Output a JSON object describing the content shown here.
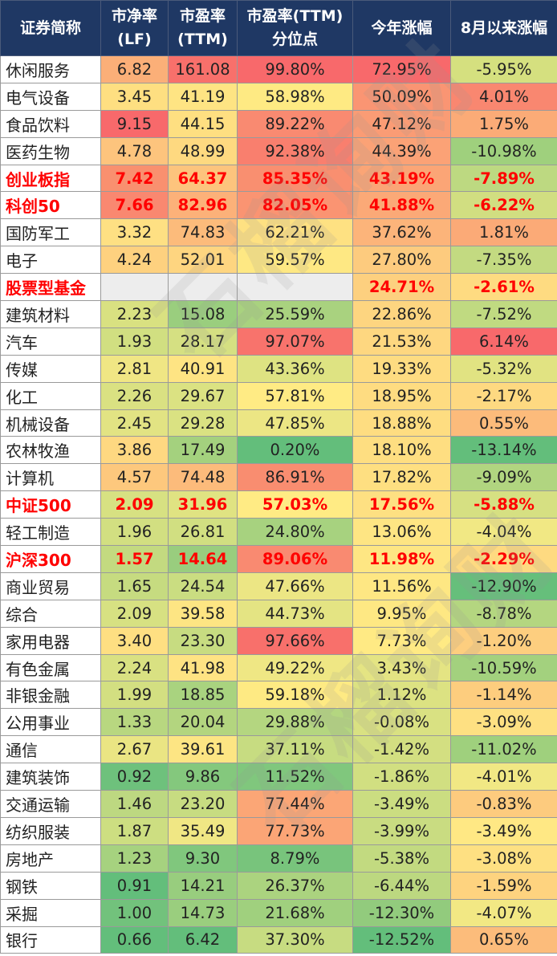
{
  "headers": [
    "证券简称",
    "市净率\n(LF)",
    "市盈率\n(TTM)",
    "市盈率(TTM)\n分位点",
    "今年涨幅",
    "8月以来涨幅"
  ],
  "watermark": "石榴询财",
  "rows": [
    {
      "name": "休闲服务",
      "pb": "6.82",
      "pe": "161.08",
      "pct": "99.80%",
      "ytd": "72.95%",
      "aug": "-5.95%",
      "hl": false,
      "bg": [
        "#FFFFFF",
        "#FBAF78",
        "#F8706B",
        "#F8696B",
        "#F8696B",
        "#D5E07F"
      ]
    },
    {
      "name": "电气设备",
      "pb": "3.45",
      "pe": "41.19",
      "pct": "58.98%",
      "ytd": "50.09%",
      "aug": "4.01%",
      "hl": false,
      "bg": [
        "#FFFFFF",
        "#FEDF81",
        "#FEE483",
        "#FEEA83",
        "#FA9573",
        "#F98770"
      ]
    },
    {
      "name": "食品饮料",
      "pb": "9.15",
      "pe": "44.15",
      "pct": "89.22%",
      "ytd": "47.12%",
      "aug": "1.75%",
      "hl": false,
      "bg": [
        "#FFFFFF",
        "#F8696B",
        "#FEDF81",
        "#F98A71",
        "#FA9C75",
        "#FBAB77"
      ]
    },
    {
      "name": "医药生物",
      "pb": "4.78",
      "pe": "48.99",
      "pct": "92.38%",
      "ytd": "44.39%",
      "aug": "-10.98%",
      "hl": false,
      "bg": [
        "#FFFFFF",
        "#FDC47D",
        "#FED980",
        "#F97F6E",
        "#FBA276",
        "#9FD07D"
      ]
    },
    {
      "name": "创业板指",
      "pb": "7.42",
      "pe": "64.37",
      "pct": "85.35%",
      "ytd": "43.19%",
      "aug": "-7.89%",
      "hl": true,
      "bg": [
        "#FFFFFF",
        "#F9906F",
        "#FDC47D",
        "#F98F70",
        "#FBA576",
        "#BDD981"
      ]
    },
    {
      "name": "科创50",
      "pb": "7.66",
      "pe": "82.96",
      "pct": "82.05%",
      "ytd": "41.88%",
      "aug": "-6.22%",
      "hl": true,
      "bg": [
        "#FFFFFF",
        "#F98870",
        "#FCB179",
        "#FA9472",
        "#FBA977",
        "#D1DE81"
      ]
    },
    {
      "name": "国防军工",
      "pb": "3.32",
      "pe": "74.83",
      "pct": "62.21%",
      "ytd": "37.62%",
      "aug": "1.81%",
      "hl": false,
      "bg": [
        "#FFFFFF",
        "#FEE083",
        "#FCBB7B",
        "#FEE182",
        "#FCB47A",
        "#FBAA77"
      ]
    },
    {
      "name": "电子",
      "pb": "4.24",
      "pe": "52.01",
      "pct": "59.57%",
      "ytd": "27.80%",
      "aug": "-7.35%",
      "hl": false,
      "bg": [
        "#FFFFFF",
        "#FED17F",
        "#FED580",
        "#FEE883",
        "#FDCB7E",
        "#C3DA81"
      ]
    },
    {
      "name": "股票型基金",
      "pb": "",
      "pe": "",
      "pct": "",
      "ytd": "24.71%",
      "aug": "-2.61%",
      "hl": true,
      "bg": [
        "#FFFFFF",
        "#EDEDED",
        "#EDEDED",
        "#EDEDED",
        "#FDD07F",
        "#FEDB81"
      ]
    },
    {
      "name": "建筑材料",
      "pb": "2.23",
      "pe": "15.08",
      "pct": "25.59%",
      "ytd": "22.86%",
      "aug": "-7.52%",
      "hl": false,
      "bg": [
        "#FFFFFF",
        "#D9E181",
        "#9ACE7E",
        "#A9D27F",
        "#FDD580",
        "#C0DA81"
      ]
    },
    {
      "name": "汽车",
      "pb": "1.93",
      "pe": "28.17",
      "pct": "97.07%",
      "ytd": "21.53%",
      "aug": "6.14%",
      "hl": false,
      "bg": [
        "#FFFFFF",
        "#D1DF81",
        "#D5E082",
        "#F8736C",
        "#FED780",
        "#F8696B"
      ]
    },
    {
      "name": "传媒",
      "pb": "2.81",
      "pe": "40.91",
      "pct": "43.36%",
      "ytd": "19.33%",
      "aug": "-5.32%",
      "hl": false,
      "bg": [
        "#FFFFFF",
        "#F0E684",
        "#FEE483",
        "#DEE382",
        "#FEDC81",
        "#E1E382"
      ]
    },
    {
      "name": "化工",
      "pb": "2.26",
      "pe": "29.67",
      "pct": "57.81%",
      "ytd": "18.95%",
      "aug": "-2.17%",
      "hl": false,
      "bg": [
        "#FFFFFF",
        "#DAE182",
        "#DBE282",
        "#FFEB84",
        "#FEDC81",
        "#FED981"
      ]
    },
    {
      "name": "机械设备",
      "pb": "2.45",
      "pe": "29.28",
      "pct": "47.85%",
      "ytd": "18.88%",
      "aug": "0.55%",
      "hl": false,
      "bg": [
        "#FFFFFF",
        "#E2E383",
        "#DAE282",
        "#ECE684",
        "#FEDD81",
        "#FCBB7B"
      ]
    },
    {
      "name": "农林牧渔",
      "pb": "3.86",
      "pe": "17.49",
      "pct": "0.20%",
      "ytd": "18.10%",
      "aug": "-13.14%",
      "hl": false,
      "bg": [
        "#FFFFFF",
        "#FED881",
        "#A4D17E",
        "#63BE7B",
        "#FEDE81",
        "#63BE7B"
      ]
    },
    {
      "name": "计算机",
      "pb": "4.57",
      "pe": "74.48",
      "pct": "86.91%",
      "ytd": "17.82%",
      "aug": "-9.09%",
      "hl": false,
      "bg": [
        "#FFFFFF",
        "#FDC87D",
        "#FCBB7B",
        "#F98D70",
        "#FEDF81",
        "#B1D580"
      ]
    },
    {
      "name": "中证500",
      "pb": "2.09",
      "pe": "31.96",
      "pct": "57.03%",
      "ytd": "17.56%",
      "aug": "-5.88%",
      "hl": true,
      "bg": [
        "#FFFFFF",
        "#D7E182",
        "#E0E382",
        "#FFEB84",
        "#FEE082",
        "#D6E082"
      ]
    },
    {
      "name": "轻工制造",
      "pb": "1.96",
      "pe": "26.81",
      "pct": "24.80%",
      "ytd": "13.06%",
      "aug": "-4.04%",
      "hl": false,
      "bg": [
        "#FFFFFF",
        "#D2DF81",
        "#D1DF81",
        "#A7D27F",
        "#FEE583",
        "#F1E884"
      ]
    },
    {
      "name": "沪深300",
      "pb": "1.57",
      "pe": "14.64",
      "pct": "89.06%",
      "ytd": "11.98%",
      "aug": "-2.29%",
      "hl": true,
      "bg": [
        "#FFFFFF",
        "#C3DA80",
        "#99CD7E",
        "#F98A71",
        "#FEE683",
        "#FEDA81"
      ]
    },
    {
      "name": "商业贸易",
      "pb": "1.65",
      "pe": "24.54",
      "pct": "47.66%",
      "ytd": "11.56%",
      "aug": "-12.90%",
      "hl": false,
      "bg": [
        "#FFFFFF",
        "#C6DB80",
        "#CADD81",
        "#ECE684",
        "#FEE783",
        "#66BF7B"
      ]
    },
    {
      "name": "综合",
      "pb": "2.09",
      "pe": "39.58",
      "pct": "44.73%",
      "ytd": "9.95%",
      "aug": "-8.78%",
      "hl": false,
      "bg": [
        "#FFFFFF",
        "#D7E182",
        "#FDE583",
        "#E4E483",
        "#FEE883",
        "#B4D680"
      ]
    },
    {
      "name": "家用电器",
      "pb": "3.40",
      "pe": "23.30",
      "pct": "97.66%",
      "ytd": "7.73%",
      "aug": "-1.20%",
      "hl": false,
      "bg": [
        "#FFFFFF",
        "#FEDF82",
        "#C7DC81",
        "#F8706B",
        "#FFEA84",
        "#FDCE7F"
      ]
    },
    {
      "name": "有色金属",
      "pb": "2.24",
      "pe": "41.98",
      "pct": "49.22%",
      "ytd": "3.43%",
      "aug": "-10.59%",
      "hl": false,
      "bg": [
        "#FFFFFF",
        "#D9E182",
        "#FEE383",
        "#EFE784",
        "#E4E483",
        "#A3D17E"
      ]
    },
    {
      "name": "非银金融",
      "pb": "1.99",
      "pe": "18.85",
      "pct": "59.18%",
      "ytd": "1.12%",
      "aug": "-1.14%",
      "hl": false,
      "bg": [
        "#FFFFFF",
        "#D3DF81",
        "#A9D37F",
        "#FEEA83",
        "#DCE282",
        "#FDCD7E"
      ]
    },
    {
      "name": "公用事业",
      "pb": "1.33",
      "pe": "20.04",
      "pct": "29.88%",
      "ytd": "-0.08%",
      "aug": "-3.09%",
      "hl": false,
      "bg": [
        "#FFFFFF",
        "#B8D780",
        "#B3D57F",
        "#B4D680",
        "#D9E182",
        "#FEE082"
      ]
    },
    {
      "name": "通信",
      "pb": "2.67",
      "pe": "39.61",
      "pct": "37.11%",
      "ytd": "-1.42%",
      "aug": "-11.02%",
      "hl": false,
      "bg": [
        "#FFFFFF",
        "#EAE583",
        "#FDE583",
        "#C7DC81",
        "#D3DF81",
        "#9FD07D"
      ]
    },
    {
      "name": "建筑装饰",
      "pb": "0.92",
      "pe": "9.86",
      "pct": "11.52%",
      "ytd": "-1.86%",
      "aug": "-4.01%",
      "hl": false,
      "bg": [
        "#FFFFFF",
        "#6EC17C",
        "#84C87D",
        "#80C77D",
        "#D1DF81",
        "#F1E884"
      ]
    },
    {
      "name": "交通运输",
      "pb": "1.46",
      "pe": "23.20",
      "pct": "77.44%",
      "ytd": "-3.49%",
      "aug": "-0.83%",
      "hl": false,
      "bg": [
        "#FFFFFF",
        "#BDD881",
        "#C7DC81",
        "#FBA676",
        "#CBDD81",
        "#FDCB7E"
      ]
    },
    {
      "name": "纺织服装",
      "pb": "1.87",
      "pe": "35.49",
      "pct": "77.73%",
      "ytd": "-3.99%",
      "aug": "-3.49%",
      "hl": false,
      "bg": [
        "#FFFFFF",
        "#CDDE81",
        "#F0E784",
        "#FBA576",
        "#C9DC81",
        "#FFE884"
      ]
    },
    {
      "name": "房地产",
      "pb": "1.23",
      "pe": "9.30",
      "pct": "8.79%",
      "ytd": "-5.38%",
      "aug": "-3.08%",
      "hl": false,
      "bg": [
        "#FFFFFF",
        "#A6D27F",
        "#80C77D",
        "#78C47C",
        "#C2DA80",
        "#FEE082"
      ]
    },
    {
      "name": "钢铁",
      "pb": "0.91",
      "pe": "14.21",
      "pct": "26.37%",
      "ytd": "-6.44%",
      "aug": "-1.59%",
      "hl": false,
      "bg": [
        "#FFFFFF",
        "#63BE7B",
        "#98CD7E",
        "#ABD37F",
        "#BCD880",
        "#FED37F"
      ]
    },
    {
      "name": "采掘",
      "pb": "1.00",
      "pe": "14.73",
      "pct": "21.68%",
      "ytd": "-12.30%",
      "aug": "-4.07%",
      "hl": false,
      "bg": [
        "#FFFFFF",
        "#72C27C",
        "#9ACE7E",
        "#A0D07E",
        "#92CB7D",
        "#F2E884"
      ]
    },
    {
      "name": "银行",
      "pb": "0.66",
      "pe": "6.42",
      "pct": "37.30%",
      "ytd": "-12.52%",
      "aug": "0.65%",
      "hl": false,
      "bg": [
        "#FFFFFF",
        "#63BE7B",
        "#63BE7B",
        "#C7DC81",
        "#63BE7B",
        "#FCBC7B"
      ]
    }
  ]
}
